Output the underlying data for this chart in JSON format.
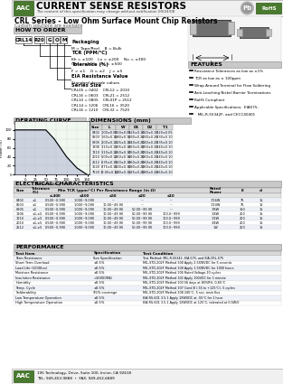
{
  "title": "CURRENT SENSE RESISTORS",
  "subtitle": "The content of this specification may change without notification 09/24/08",
  "series_title": "CRL Series - Low Ohm Surface Mount Chip Resistors",
  "custom": "Custom solutions are available",
  "how_to_order": "HOW TO ORDER",
  "order_parts": [
    "CRL14",
    "R20",
    "G",
    "O",
    "M"
  ],
  "packaging_label": "Packaging",
  "packaging_text": "M = Tape/Reel    B = Bulk",
  "tcr_label": "TCR (PPM/°C)",
  "tcr_lines": [
    "Kh = ±100    Lx = ±200    Nx = ±300",
    "Gm = ±500    Gn = ±500"
  ],
  "tolerance_label": "Tolerance (%)",
  "tolerance_text": "F = ±1    G = ±2    J = ±5",
  "eia_label": "EIA Resistance Value",
  "eia_text": "Standard decade values",
  "series_size_label": "Series Size",
  "series_sizes": [
    "CRL05 = 0402    CRL12 = 2010",
    "CRL16 = 0603    CRL21 = 2512",
    "CRL10 = 0805    CRL01P = 2512",
    "CRL14 = 1206    CRL16 = 3520",
    "CRL16 = 1210    CRL32 = 7520"
  ],
  "features_title": "FEATURES",
  "features": [
    "Resistance Tolerances as low as ±1%",
    "TCR as low as ± 100ppm",
    "Wrap Around Terminal for Flow Soldering",
    "Anti-Leaching Nickel Barrier Terminations",
    "RoHS Compliant",
    "Applicable Specifications:  EIA575,",
    "   MIL-R-55342F, and CECC40401"
  ],
  "derating_title": "DERATING CURVE",
  "dimensions_title": "DIMENSIONS (mm)",
  "electrical_title": "ELECTRICAL CHARACTERISTICS",
  "performance_title": "PERFORMANCE",
  "dim_headers": [
    "Size",
    "L",
    "W",
    "D1",
    "D2",
    "T1"
  ],
  "dim_data": [
    [
      "0402",
      "1.00±0.05",
      "0.50±0.05",
      "0.25±0.10",
      "0.20±0.10",
      "0.20±0.05"
    ],
    [
      "0603",
      "1.60±0.10",
      "0.80±0.10",
      "0.30±0.20",
      "0.30±0.20",
      "0.30±0.10"
    ],
    [
      "0805",
      "2.00±0.10",
      "1.25±0.10",
      "0.40±0.20",
      "0.40±0.20",
      "0.35±0.10"
    ],
    [
      "1206",
      "3.10±0.10",
      "1.55±0.10",
      "0.50±0.20",
      "0.50±0.20",
      "0.40±0.10"
    ],
    [
      "1210",
      "3.10±0.10",
      "2.60±0.10",
      "0.50±0.20",
      "0.50±0.20",
      "0.40±0.10"
    ],
    [
      "2010",
      "5.00±0.10",
      "2.50±0.10",
      "0.60±0.20",
      "0.60±0.20",
      "0.40±0.10"
    ],
    [
      "2512",
      "6.35±0.10",
      "3.20±0.10",
      "0.60±0.20",
      "0.60±0.20",
      "0.40±0.10"
    ],
    [
      "3520",
      "8.75±0.10",
      "5.00±0.10",
      "0.80±0.20",
      "0.60±0.20",
      "0.40±0.10"
    ],
    [
      "7520",
      "19.00±0.10",
      "5.00±0.10",
      "1.25±0.20",
      "0.80±0.20",
      "0.60±0.10"
    ]
  ],
  "elec_data": [
    [
      "0402",
      "±1",
      "0.500~0.990",
      "1.000~9.090",
      "---",
      "---",
      "---",
      "1/16W",
      "75",
      "15"
    ],
    [
      "0603",
      "±1",
      "0.500~0.990",
      "1.000~9.090",
      "10.00~49.90",
      "---",
      "---",
      "1/10W",
      "75",
      "15"
    ],
    [
      "0805",
      "±1",
      "0.500~0.990",
      "1.000~9.090",
      "10.00~49.90",
      "50.00~99.90",
      "---",
      "1/8W",
      "150",
      "15"
    ],
    [
      "1206",
      "±1,±5",
      "0.500~0.990",
      "1.000~9.090",
      "10.00~49.90",
      "50.00~99.90",
      "100.0~999",
      "1/4W",
      "200",
      "15"
    ],
    [
      "1210",
      "±1,±5",
      "0.500~0.990",
      "1.000~9.090",
      "10.00~49.90",
      "50.00~99.90",
      "100.0~999",
      "1/2W",
      "200",
      "15"
    ],
    [
      "2010",
      "±1,±5",
      "0.500~0.990",
      "1.000~9.090",
      "10.00~49.90",
      "50.00~99.90",
      "100.0~999",
      "3/4W",
      "200",
      "15"
    ],
    [
      "2512",
      "±1,±5",
      "0.500~0.990",
      "1.000~9.090",
      "10.00~49.90",
      "50.00~99.90",
      "100.0~999",
      "1W",
      "200",
      "15"
    ]
  ],
  "perf_data": [
    [
      "Term Resistance",
      "See Specification",
      "Test Method: MIL-R-55342, EIA-575, and EIA-CRL-575"
    ],
    [
      "Short Term Overload",
      "±0.5%",
      "MIL-STD-202F Method 308 Apply 2.5XWVDC for 5 seconds"
    ],
    [
      "Load Life (1000hrs)",
      "±0.5%",
      "MIL-STD-202F Method 108 Apply 1.5XWVDC for 1000 hours"
    ],
    [
      "Moisture Resistance",
      "±0.5%",
      "MIL-STD-202F Method 106 Rated Voltage,10 cycles"
    ],
    [
      "Insulation Resistance",
      ">10000MΩ",
      "MIL-STD-202F Method 302 Apply 100VDC for 1 minute"
    ],
    [
      "Humidity",
      "±0.5%",
      "MIL-STD-202F Method 103 56 days at 85%RH, 0-65°C"
    ],
    [
      "Temp. Cycle",
      "±0.5%",
      "MIL-STD-202F Method 107 Cond B (-55 to +125°C), 5 cycles"
    ],
    [
      "Solderability",
      "95% coverage",
      "MIL-STD-202F Method 208 245°C, 5 sec, rosin flux"
    ],
    [
      "Low Temperature Operation",
      "±0.5%",
      "EIA RS-601 3.5.1 Apply 1XWVDC at -55°C for 1 hour"
    ],
    [
      "High Temperature Operation",
      "±0.5%",
      "EIA RS-601 3.5.1 Apply 1XWVDC at 125°C, tolerated at 0.5W/0"
    ]
  ],
  "company_address": "195 Technology, Drive, Suite 100, Irvine, CA 92618",
  "company_tel": "TEL: 949-453-9888  •  FAX: 949-453-6889",
  "bg_color": "#ffffff",
  "gray_header": "#c8c8c8",
  "light_gray": "#e8e8e8",
  "green_color": "#4a7a30"
}
